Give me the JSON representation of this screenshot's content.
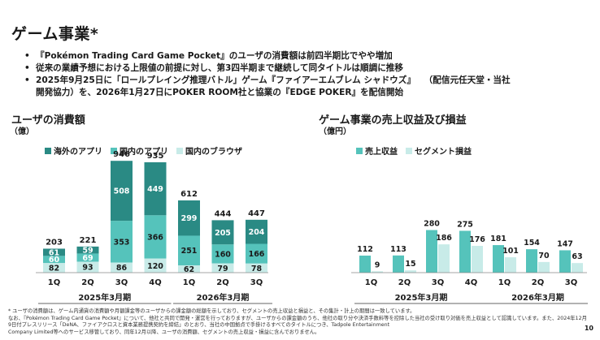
{
  "page": {
    "title": "ゲーム事業*",
    "bullets": [
      "『Pokémon Trading Card Game Pocket』のユーザの消費額は前四半期比でやや増加",
      "従来の業績予想における上限値の前提に対し、第3四半期まで継続して同タイトルは順調に推移",
      "2025年9月25日に「ロールプレイング推理バトル」ゲーム『ファイアーエムブレム シャドウズ』",
      "開発協力）を、2026年1月27日にPOKER ROOM社と協業の『EDGE POKER』を配信開始"
    ],
    "bullet3_note": "（配信元任天堂・当社",
    "footnote": [
      "* ユーザの消費額は、ゲーム内通貨の消費額や月額課金等のユーザからの課金額の総額を示しており、セグメントの売上収益と損益と、その集計・計上の期間は一致しています。",
      "なお、『Pokémon Trading Card Game Pocket』について、他社と共同で開発・運営を行っておりますが、ユーザからの課金額のうち、他社の取り分や決済手数料等を控除した当社の受け取り対価を売上収益として認識しています。また、2024年12月9日付プレスリリース「DeNA、ファイアクロスと資本業務提携契約を締結」のとおり、当社の中国拠点で手掛けるすべてのタイトルにつき、Tadpole Entertainment",
      "Company Limited等へのサービス移管しており、同年12月以降、ユーザの消費額、セグメントの売上収益・損益に含んでおりません。"
    ],
    "page_number": "10"
  },
  "colors": {
    "overseas": "#2a8a84",
    "domestic": "#55c3bb",
    "browser": "#c8ebe8",
    "revenue": "#55c3bb",
    "profit": "#c8ebe8",
    "text": "#1a1a1a"
  },
  "chart_data": [
    {
      "type": "bar",
      "stacked": true,
      "title": "ユーザの消費額",
      "unit": "（億）",
      "categories": [
        "1Q",
        "2Q",
        "3Q",
        "4Q",
        "1Q",
        "2Q",
        "3Q"
      ],
      "groups": [
        {
          "label": "2025年3月期",
          "count": 4
        },
        {
          "label": "2026年3月期",
          "count": 3
        }
      ],
      "totals": [
        203,
        221,
        946,
        935,
        612,
        444,
        447
      ],
      "series": [
        {
          "name": "国内のブラウザ",
          "values": [
            82,
            93,
            86,
            120,
            62,
            79,
            78
          ]
        },
        {
          "name": "国内のアプリ",
          "values": [
            60,
            69,
            353,
            366,
            251,
            160,
            166
          ]
        },
        {
          "name": "海外のアプリ",
          "values": [
            61,
            59,
            508,
            449,
            299,
            205,
            204
          ]
        }
      ],
      "legend_order": [
        "海外のアプリ",
        "国内のアプリ",
        "国内のブラウザ"
      ],
      "ylim": [
        0,
        1000
      ],
      "legend_position": "top"
    },
    {
      "type": "bar",
      "stacked": false,
      "title": "ゲーム事業の売上収益及び損益",
      "unit": "（億円）",
      "categories": [
        "1Q",
        "2Q",
        "3Q",
        "4Q",
        "1Q",
        "2Q",
        "3Q"
      ],
      "groups": [
        {
          "label": "2025年3月期",
          "count": 4
        },
        {
          "label": "2026年3月期",
          "count": 3
        }
      ],
      "series": [
        {
          "name": "売上収益",
          "values": [
            112,
            113,
            280,
            275,
            181,
            154,
            147
          ]
        },
        {
          "name": "セグメント損益",
          "values": [
            9,
            15,
            186,
            176,
            101,
            70,
            63
          ]
        }
      ],
      "ylim": [
        0,
        300
      ],
      "legend_position": "top"
    }
  ]
}
